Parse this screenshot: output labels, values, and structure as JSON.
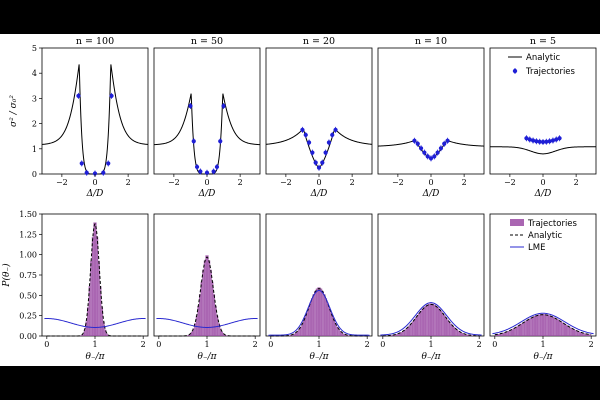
{
  "chart_data": {
    "type": "line",
    "top_row": {
      "ylabel": "σ² / σ₀²",
      "xlabel": "Δ/D",
      "xlim": [
        -3.2,
        3.2
      ],
      "ylim": [
        0,
        5
      ],
      "xticks": [
        "−2",
        "0",
        "2"
      ],
      "yticks": [
        "0",
        "1",
        "2",
        "3",
        "4",
        "5"
      ],
      "panels": [
        {
          "title": "n = 100",
          "n": 100
        },
        {
          "title": "n = 50",
          "n": 50
        },
        {
          "title": "n = 20",
          "n": 20
        },
        {
          "title": "n = 10",
          "n": 10
        },
        {
          "title": "n = 5",
          "n": 5
        }
      ],
      "series": [
        {
          "name": "Analytic",
          "style": "solid",
          "color": "#000000"
        },
        {
          "name": "Trajectories",
          "style": "markers",
          "color": "#1f1fd6"
        }
      ],
      "trajectory_points": [
        {
          "x": [
            -1.0,
            -0.8,
            -0.5,
            0.0,
            0.5,
            0.8,
            1.0
          ],
          "y": [
            3.1,
            0.42,
            0.05,
            0.02,
            0.05,
            0.42,
            3.1
          ]
        },
        {
          "x": [
            -1.0,
            -0.8,
            -0.6,
            -0.4,
            0.0,
            0.4,
            0.6,
            0.8,
            1.0
          ],
          "y": [
            2.7,
            1.3,
            0.28,
            0.1,
            0.05,
            0.1,
            0.28,
            1.3,
            2.7
          ]
        },
        {
          "x": [
            -1.0,
            -0.8,
            -0.6,
            -0.4,
            -0.2,
            0.0,
            0.2,
            0.4,
            0.6,
            0.8,
            1.0
          ],
          "y": [
            1.75,
            1.55,
            1.25,
            0.85,
            0.45,
            0.25,
            0.45,
            0.85,
            1.25,
            1.55,
            1.75
          ]
        },
        {
          "x": [
            -1.0,
            -0.8,
            -0.6,
            -0.4,
            -0.2,
            0.0,
            0.2,
            0.4,
            0.6,
            0.8,
            1.0
          ],
          "y": [
            1.32,
            1.2,
            1.02,
            0.85,
            0.7,
            0.62,
            0.7,
            0.85,
            1.02,
            1.2,
            1.32
          ]
        },
        {
          "x": [
            -1.0,
            -0.8,
            -0.6,
            -0.4,
            -0.2,
            0.0,
            0.2,
            0.4,
            0.6,
            0.8,
            1.0
          ],
          "y": [
            1.42,
            1.37,
            1.33,
            1.3,
            1.28,
            1.27,
            1.28,
            1.3,
            1.33,
            1.37,
            1.42
          ]
        }
      ]
    },
    "bottom_row": {
      "ylabel": "P(θ₋)",
      "xlabel": "θ₋/π",
      "xlim": [
        -0.1,
        2.1
      ],
      "ylim": [
        0,
        1.5
      ],
      "xticks": [
        "0",
        "1",
        "2"
      ],
      "yticks": [
        "0.00",
        "0.25",
        "0.50",
        "0.75",
        "1.00",
        "1.25",
        "1.50"
      ],
      "series": [
        {
          "name": "Trajectories",
          "style": "histogram",
          "color": "#9b4ba4"
        },
        {
          "name": "Analytic",
          "style": "dashed",
          "color": "#000000"
        },
        {
          "name": "LME",
          "style": "solid",
          "color": "#2a2ad0"
        }
      ],
      "panels": [
        {
          "peak": 1.42,
          "width": 0.09,
          "lme_mean": 0.16,
          "lme_amp": 0.055,
          "lme_peaked": false
        },
        {
          "peak": 1.0,
          "width": 0.13,
          "lme_mean": 0.16,
          "lme_amp": 0.055,
          "lme_peaked": false
        },
        {
          "peak": 0.6,
          "width": 0.21,
          "lme_mean": 0.0,
          "lme_amp": 0.0,
          "lme_peaked": true,
          "lme_peak": 0.55
        },
        {
          "peak": 0.4,
          "width": 0.3,
          "lme_mean": 0.0,
          "lme_amp": 0.0,
          "lme_peaked": true,
          "lme_peak": 0.4
        },
        {
          "peak": 0.27,
          "width": 0.42,
          "lme_mean": 0.0,
          "lme_amp": 0.0,
          "lme_peaked": true,
          "lme_peak": 0.27
        }
      ]
    },
    "legends": {
      "top": [
        "Analytic",
        "Trajectories"
      ],
      "bottom": [
        "Trajectories",
        "Analytic",
        "LME"
      ]
    }
  }
}
